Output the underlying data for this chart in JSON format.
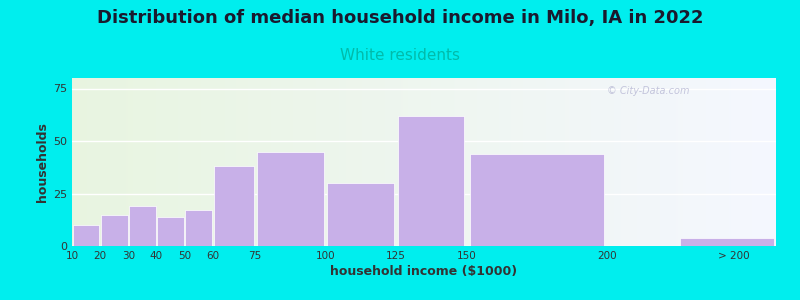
{
  "title": "Distribution of median household income in Milo, IA in 2022",
  "subtitle": "White residents",
  "xlabel": "household income ($1000)",
  "ylabel": "households",
  "title_fontsize": 13,
  "subtitle_fontsize": 11,
  "subtitle_color": "#00bbaa",
  "background_color": "#00eeee",
  "bar_color": "#c8b0e8",
  "bar_edge_color": "#ffffff",
  "bin_edges": [
    10,
    20,
    30,
    40,
    50,
    60,
    75,
    100,
    125,
    150,
    200,
    225,
    260
  ],
  "bin_labels": [
    "10",
    "20",
    "30",
    "40",
    "50",
    "60",
    "75",
    "100",
    "125",
    "150",
    "200",
    "> 200"
  ],
  "values": [
    10,
    15,
    19,
    14,
    17,
    38,
    45,
    30,
    62,
    44,
    0,
    4
  ],
  "ylim": [
    0,
    80
  ],
  "yticks": [
    0,
    25,
    50,
    75
  ],
  "xtick_positions": [
    10,
    20,
    30,
    40,
    50,
    60,
    75,
    100,
    125,
    150,
    200,
    245
  ],
  "watermark": "© City-Data.com"
}
